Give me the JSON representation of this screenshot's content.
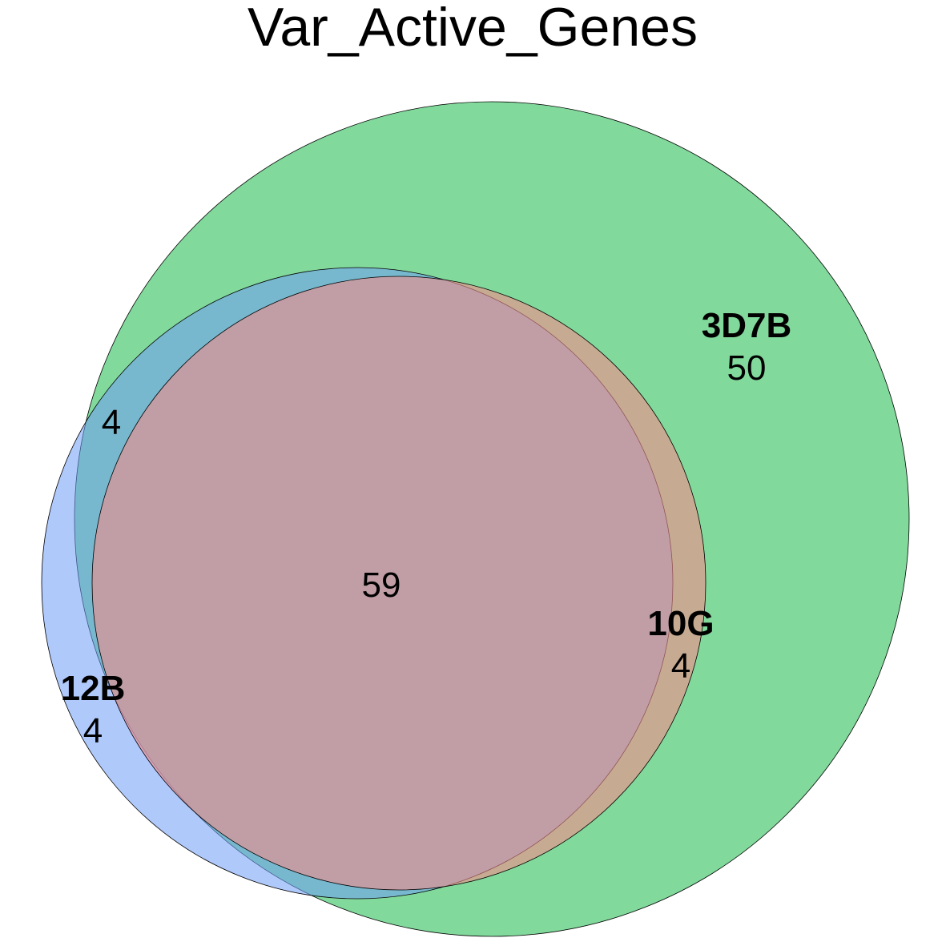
{
  "diagram": {
    "title": "Var_Active_Genes",
    "sets": [
      {
        "id": "3d7b",
        "label": "3D7B",
        "count": "50",
        "fill": "#2fbf5a",
        "opacity": 0.6
      },
      {
        "id": "12b",
        "label": "12B",
        "count": "4",
        "fill": "#6f9cf7",
        "opacity": 0.55
      },
      {
        "id": "10g",
        "label": "10G",
        "count": "4",
        "fill": "#f48c8c",
        "opacity": 0.6
      }
    ],
    "intersections": {
      "3d7b_12b": "4",
      "all": "59"
    }
  }
}
